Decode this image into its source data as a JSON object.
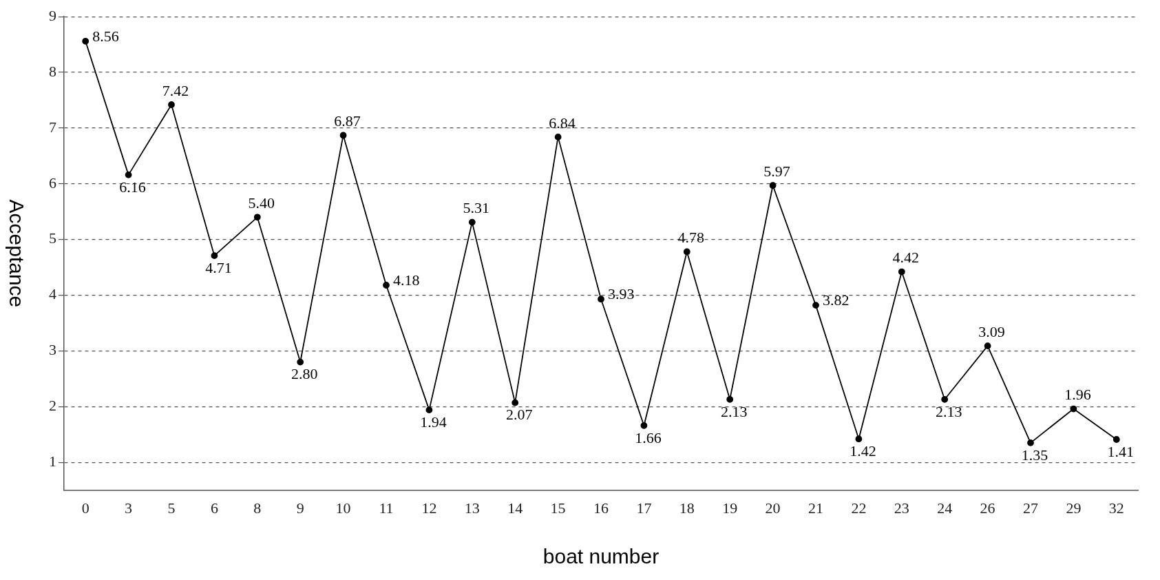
{
  "chart_data": {
    "type": "line",
    "xlabel": "boat number",
    "ylabel": "Acceptance",
    "categories": [
      "0",
      "3",
      "5",
      "6",
      "8",
      "9",
      "10",
      "11",
      "12",
      "13",
      "14",
      "15",
      "16",
      "17",
      "18",
      "19",
      "20",
      "21",
      "22",
      "23",
      "24",
      "26",
      "27",
      "29",
      "32"
    ],
    "values": [
      8.56,
      6.16,
      7.42,
      4.71,
      5.4,
      2.8,
      6.87,
      4.18,
      1.94,
      5.31,
      2.07,
      6.84,
      3.93,
      1.66,
      4.78,
      2.13,
      5.97,
      3.82,
      1.42,
      4.42,
      2.13,
      3.09,
      1.35,
      1.96,
      1.41
    ],
    "value_labels": [
      "8.56",
      "6.16",
      "7.42",
      "4.71",
      "5.40",
      "2.80",
      "6.87",
      "4.18",
      "1.94",
      "5.31",
      "2.07",
      "6.84",
      "3.93",
      "1.66",
      "4.78",
      "2.13",
      "5.97",
      "3.82",
      "1.42",
      "4.42",
      "2.13",
      "3.09",
      "1.35",
      "1.96",
      "1.41"
    ],
    "color": "#000000",
    "ylim": [
      0.5,
      9
    ],
    "yticks": [
      1,
      2,
      3,
      4,
      5,
      6,
      7,
      8,
      9
    ],
    "grid": "y",
    "marker": "circle",
    "line_style": "solid",
    "legend": false
  }
}
